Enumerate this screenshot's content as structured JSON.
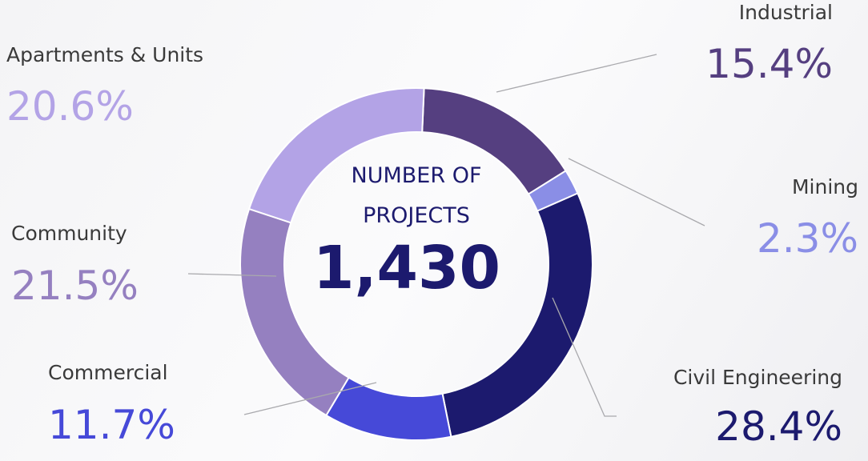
{
  "chart_data": {
    "type": "donut",
    "center_title": "NUMBER OF PROJECTS",
    "center_value": "1,430",
    "categories": [
      "Industrial",
      "Mining",
      "Civil Engineering",
      "Commercial",
      "Community",
      "Apartments & Units"
    ],
    "values": [
      15.4,
      2.3,
      28.4,
      11.7,
      21.5,
      20.6
    ],
    "value_labels": [
      "15.4%",
      "2.3%",
      "28.4%",
      "11.7%",
      "21.5%",
      "20.6%"
    ],
    "colors": [
      "#553f80",
      "#8a8ee6",
      "#1c1a6e",
      "#4649d8",
      "#9580c0",
      "#b3a3e6"
    ]
  }
}
